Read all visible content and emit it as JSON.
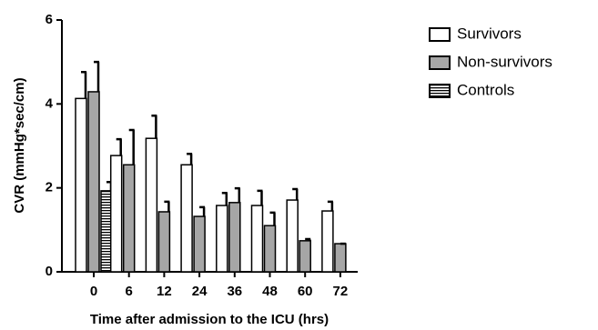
{
  "chart_data": {
    "type": "bar",
    "ylabel": "CVR (mmHg*sec/cm)",
    "xlabel": "Time after admission to the ICU (hrs)",
    "categories": [
      "0",
      "6",
      "12",
      "24",
      "36",
      "48",
      "60",
      "72"
    ],
    "series": [
      {
        "name": "Survivors",
        "color": "#ffffff",
        "values": [
          4.13,
          2.77,
          3.18,
          2.55,
          1.58,
          1.58,
          1.71,
          1.45
        ],
        "errors": [
          0.63,
          0.39,
          0.54,
          0.26,
          0.3,
          0.35,
          0.26,
          0.22
        ]
      },
      {
        "name": "Non-survivors",
        "color": "#a6a6a6",
        "values": [
          4.29,
          2.55,
          1.43,
          1.32,
          1.65,
          1.1,
          0.74,
          0.67
        ],
        "errors": [
          0.71,
          0.83,
          0.24,
          0.22,
          0.34,
          0.31,
          0.04,
          0
        ]
      },
      {
        "name": "Controls",
        "color": "striped",
        "values": [
          1.93,
          null,
          null,
          null,
          null,
          null,
          null,
          null
        ],
        "errors": [
          0.21,
          null,
          null,
          null,
          null,
          null,
          null,
          null
        ]
      }
    ],
    "ylim": [
      0,
      6
    ],
    "yticks": [
      0,
      2,
      4,
      6
    ],
    "legend": "upper right"
  }
}
